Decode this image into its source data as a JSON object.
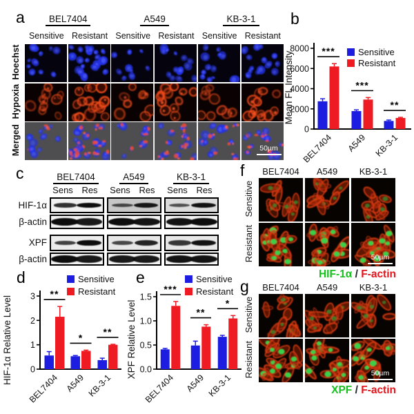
{
  "panels": {
    "a": {
      "letter": "a",
      "cell_lines": [
        "BEL7404",
        "A549",
        "KB-3-1"
      ],
      "conditions": [
        "Sensitive",
        "Resistant"
      ],
      "row_labels": [
        "Hoechst",
        "Hypoxia",
        "Merged"
      ],
      "scale_bar_label": "50µm"
    },
    "b": {
      "letter": "b"
    },
    "c": {
      "letter": "c",
      "cell_lines": [
        "BEL7404",
        "A549",
        "KB-3-1"
      ],
      "conditions": [
        "Sens",
        "Res"
      ],
      "rows": [
        {
          "label": "HIF-1α",
          "bg": [
            "#f1f1f1",
            "#c7c7c7",
            "#dcdcdc"
          ],
          "pairs": [
            [
              0.7,
              1.0
            ],
            [
              0.45,
              0.9
            ],
            [
              0.4,
              0.95
            ]
          ]
        },
        {
          "label": "β-actin",
          "bg": [
            "#f3f3f3",
            "#f3f3f3",
            "#f3f3f3"
          ],
          "pairs": [
            [
              1.0,
              0.9
            ],
            [
              1.0,
              0.95
            ],
            [
              0.95,
              1.0
            ]
          ]
        },
        {
          "label": "XPF",
          "bg": [
            "#ececec",
            "#e7e7e7",
            "#e7e7e7"
          ],
          "pairs": [
            [
              0.55,
              1.0
            ],
            [
              0.5,
              0.8
            ],
            [
              0.65,
              0.95
            ]
          ]
        },
        {
          "label": "β-actin",
          "bg": [
            "#f3f3f3",
            "#f3f3f3",
            "#f3f3f3"
          ],
          "pairs": [
            [
              1.0,
              0.9
            ],
            [
              0.9,
              0.9
            ],
            [
              0.95,
              0.95
            ]
          ]
        }
      ]
    },
    "d": {
      "letter": "d"
    },
    "e": {
      "letter": "e"
    },
    "f": {
      "letter": "f",
      "cell_lines": [
        "BEL7404",
        "A549",
        "KB-3-1"
      ],
      "row_labels": [
        "Sensitive",
        "Resistant"
      ],
      "caption": [
        {
          "text": "HIF-1α",
          "color": "#17c01e"
        },
        {
          "text": " / ",
          "color": "#222222"
        },
        {
          "text": "F-actin",
          "color": "#e8141b"
        }
      ],
      "scale_bar_label": "50µm"
    },
    "g": {
      "letter": "g",
      "cell_lines": [
        "BEL7404",
        "A549",
        "KB-3-1"
      ],
      "row_labels": [
        "Sensitive",
        "Resistant"
      ],
      "caption": [
        {
          "text": "XPF",
          "color": "#17c01e"
        },
        {
          "text": " / ",
          "color": "#222222"
        },
        {
          "text": "F-actin",
          "color": "#e8141b"
        }
      ],
      "scale_bar_label": "50µm"
    }
  },
  "chart_data": [
    {
      "panel": "b",
      "type": "bar",
      "title": "",
      "xlabel": "",
      "ylabel": "Mean FL Intensity",
      "ylim": [
        0,
        8000
      ],
      "ytick_labels": [
        "0",
        "2000",
        "4000",
        "6000",
        "8000"
      ],
      "grid": false,
      "legend_position": "top-right",
      "categories": [
        "BEL7404",
        "A549",
        "KB-3-1"
      ],
      "series": [
        {
          "name": "Sensitive",
          "color": "#1d1de2",
          "values": [
            2750,
            1780,
            800
          ],
          "errors": [
            250,
            120,
            90
          ]
        },
        {
          "name": "Resistant",
          "color": "#ee1b22",
          "values": [
            6200,
            2920,
            1100
          ],
          "errors": [
            280,
            200,
            60
          ]
        }
      ],
      "significance": [
        "***",
        "***",
        "**"
      ]
    },
    {
      "panel": "d",
      "type": "bar",
      "title": "",
      "xlabel": "",
      "ylabel": "HIF-1α Relative Level",
      "ylim": [
        0,
        3
      ],
      "ytick_labels": [
        "0",
        "1",
        "2",
        "3"
      ],
      "grid": false,
      "legend_position": "top-right",
      "categories": [
        "BEL7404",
        "A549",
        "KB-3-1"
      ],
      "series": [
        {
          "name": "Sensitive",
          "color": "#1d1de2",
          "values": [
            0.56,
            0.53,
            0.37
          ],
          "errors": [
            0.16,
            0.03,
            0.08
          ]
        },
        {
          "name": "Resistant",
          "color": "#ee1b22",
          "values": [
            2.15,
            0.75,
            1.0
          ],
          "errors": [
            0.42,
            0.03,
            0.02
          ]
        }
      ],
      "significance": [
        "**",
        "*",
        "**"
      ]
    },
    {
      "panel": "e",
      "type": "bar",
      "title": "",
      "xlabel": "",
      "ylabel": "XPF Relative Level",
      "ylim": [
        0,
        1.5
      ],
      "ytick_labels": [
        "0.0",
        "0.5",
        "1.0",
        "1.5"
      ],
      "grid": false,
      "legend_position": "top-right",
      "categories": [
        "BEL7404",
        "A549",
        "KB-3-1"
      ],
      "series": [
        {
          "name": "Sensitive",
          "color": "#1d1de2",
          "values": [
            0.41,
            0.49,
            0.67
          ],
          "errors": [
            0.02,
            0.09,
            0.03
          ]
        },
        {
          "name": "Resistant",
          "color": "#ee1b22",
          "values": [
            1.31,
            0.88,
            1.05
          ],
          "errors": [
            0.09,
            0.04,
            0.06
          ]
        }
      ],
      "significance": [
        "***",
        "**",
        "*"
      ]
    }
  ],
  "colors": {
    "sensitive_bar": "#1d1de2",
    "resistant_bar": "#ee1b22",
    "hif_green": "#17c01e",
    "factin_red": "#e8141b"
  }
}
